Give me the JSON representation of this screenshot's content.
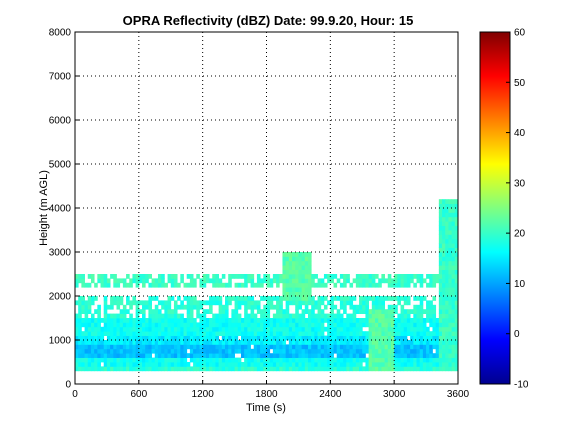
{
  "chart_data": {
    "type": "heatmap",
    "title": "OPRA Reflectivity (dBZ)  Date: 99.9.20, Hour: 15",
    "xlabel": "Time (s)",
    "ylabel": "Height (m AGL)",
    "xlim": [
      0,
      3600
    ],
    "ylim": [
      0,
      8000
    ],
    "x_ticks": [
      "0",
      "600",
      "1200",
      "1800",
      "2400",
      "3000",
      "3600"
    ],
    "y_ticks": [
      "0",
      "1000",
      "2000",
      "3000",
      "4000",
      "5000",
      "6000",
      "7000",
      "8000"
    ],
    "grid": true,
    "colormap": "jet",
    "colorbar": {
      "min": -10,
      "max": 60,
      "ticks": [
        "-10",
        "0",
        "10",
        "20",
        "30",
        "40",
        "50",
        "60"
      ]
    },
    "echo_layers": [
      {
        "height_range": [
          250,
          400
        ],
        "dbz": 19
      },
      {
        "height_range": [
          400,
          550
        ],
        "dbz": 17
      },
      {
        "height_range": [
          550,
          850
        ],
        "dbz": 12
      },
      {
        "height_range": [
          850,
          1100
        ],
        "dbz": 15
      },
      {
        "height_range": [
          1100,
          1500
        ],
        "dbz": 17
      },
      {
        "height_range": [
          1500,
          2000
        ],
        "dbz": 19
      },
      {
        "height_range": [
          2150,
          2450
        ],
        "dbz": 20
      }
    ],
    "features": [
      {
        "description": "elevated echo",
        "time_range": [
          1950,
          2200
        ],
        "height_range": [
          1900,
          2950
        ],
        "dbz": 22
      },
      {
        "description": "descending streak",
        "time_range": [
          2750,
          3000
        ],
        "height_range": [
          300,
          1700
        ],
        "dbz": 22
      },
      {
        "description": "deep echo",
        "time_range": [
          3420,
          3580
        ],
        "height_range": [
          250,
          4200
        ],
        "dbz": 20
      }
    ]
  }
}
